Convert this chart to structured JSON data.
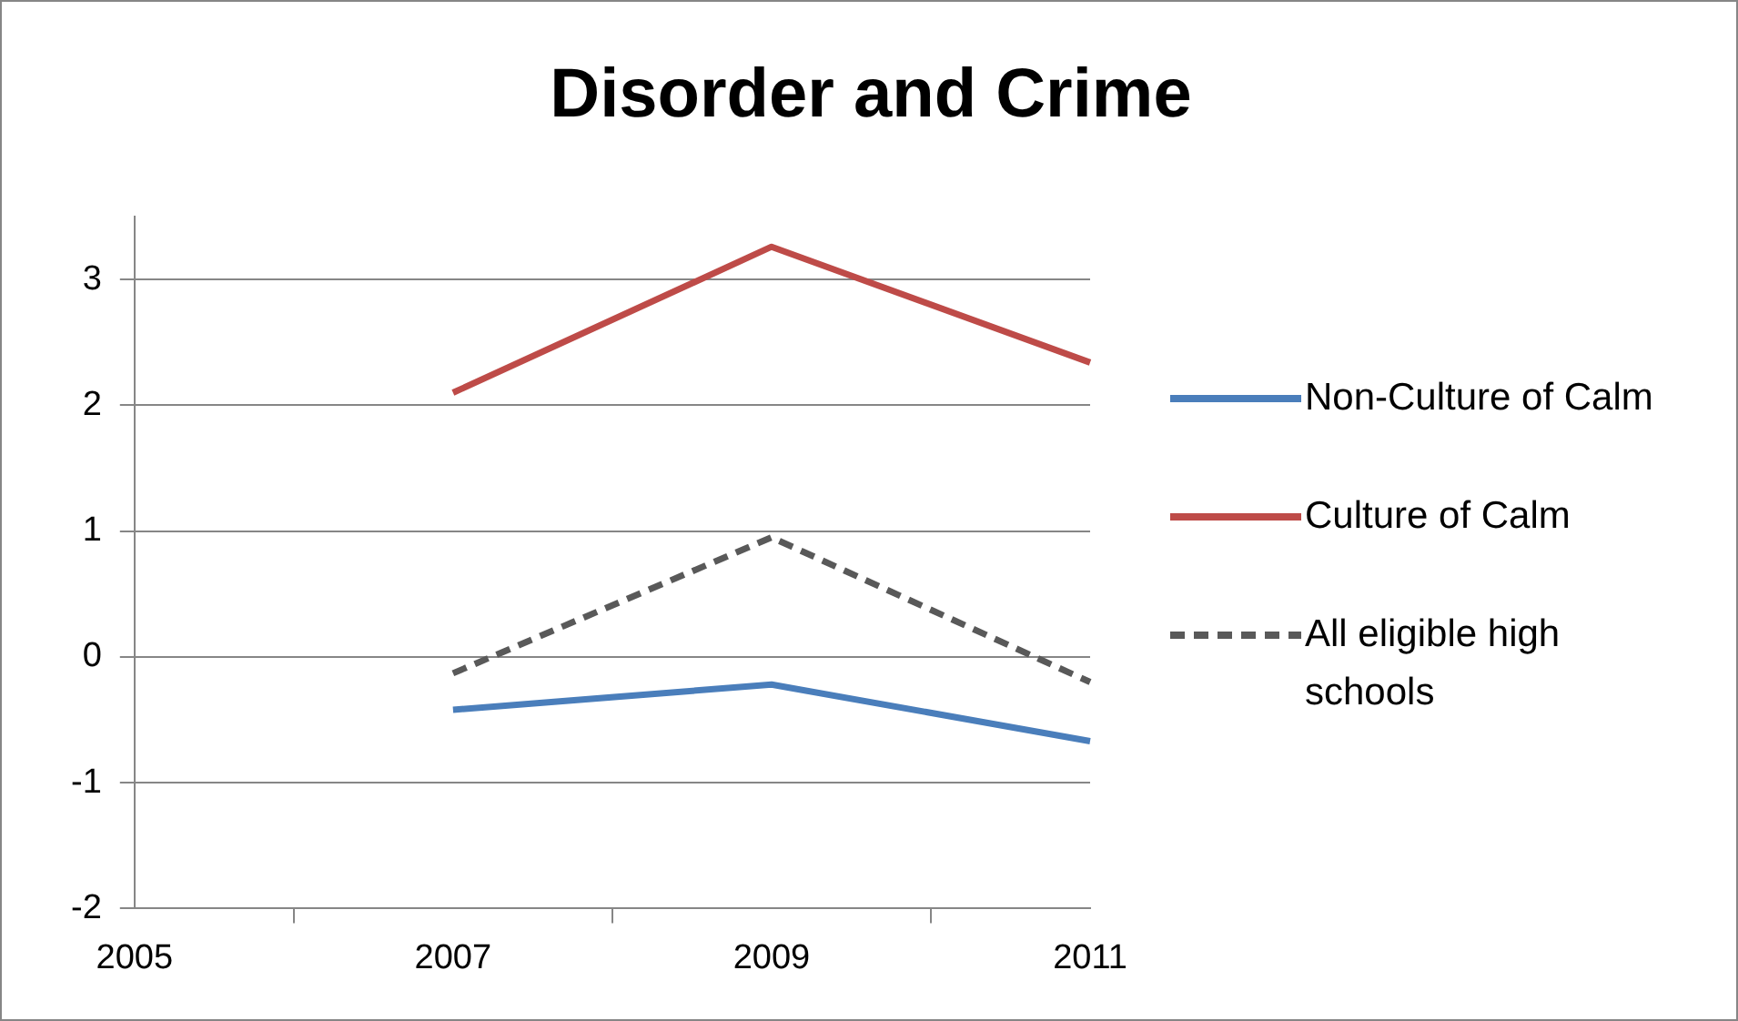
{
  "chart_data": {
    "type": "line",
    "title": "Disorder and Crime",
    "categories": [
      "2005",
      "2007",
      "2009",
      "2011"
    ],
    "series": [
      {
        "name": "Non-Culture of Calm",
        "color": "#4a7ebb",
        "values": [
          null,
          -0.42,
          -0.22,
          -0.67
        ]
      },
      {
        "name": "Culture of Calm",
        "color": "#be4b48",
        "values": [
          null,
          2.1,
          3.26,
          2.34
        ]
      },
      {
        "name": "All eligible high schools",
        "color": "#595959",
        "values": [
          null,
          -0.13,
          0.95,
          -0.2
        ],
        "line_style": "dashed"
      }
    ],
    "ylim": [
      -2,
      3.5
    ],
    "yticks": [
      -2,
      -1,
      0,
      1,
      2,
      3
    ],
    "grid": "y",
    "legend": "right",
    "marker": "none"
  }
}
